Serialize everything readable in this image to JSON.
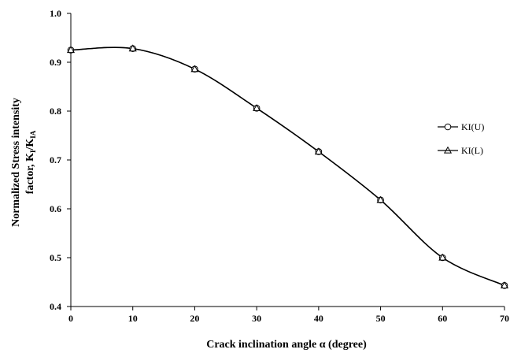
{
  "chart_data": {
    "type": "line",
    "xlabel": "Crack inclination angle α (degree)",
    "ylabel_line1": "Normalized Stress intensity",
    "ylabel_line2_prefix": "factor, K",
    "ylabel_line2_sub1": "I",
    "ylabel_line2_mid": "/K",
    "ylabel_line2_sub2": "IA",
    "xlim": [
      0,
      70
    ],
    "ylim": [
      0.4,
      1.0
    ],
    "xticks": [
      0,
      10,
      20,
      30,
      40,
      50,
      60,
      70
    ],
    "yticks": [
      "0.4",
      "0.5",
      "0.6",
      "0.7",
      "0.8",
      "0.9",
      "1.0"
    ],
    "grid": false,
    "legend_position": "right",
    "line_color": "#000000",
    "series": [
      {
        "name": "KI(U)",
        "marker": "circle",
        "x": [
          0,
          10,
          20,
          30,
          40,
          50,
          60,
          70
        ],
        "values": [
          0.925,
          0.928,
          0.886,
          0.806,
          0.717,
          0.618,
          0.5,
          0.443
        ]
      },
      {
        "name": "KI(L)",
        "marker": "triangle",
        "x": [
          0,
          10,
          20,
          30,
          40,
          50,
          60,
          70
        ],
        "values": [
          0.925,
          0.928,
          0.886,
          0.806,
          0.717,
          0.618,
          0.5,
          0.443
        ]
      }
    ]
  }
}
